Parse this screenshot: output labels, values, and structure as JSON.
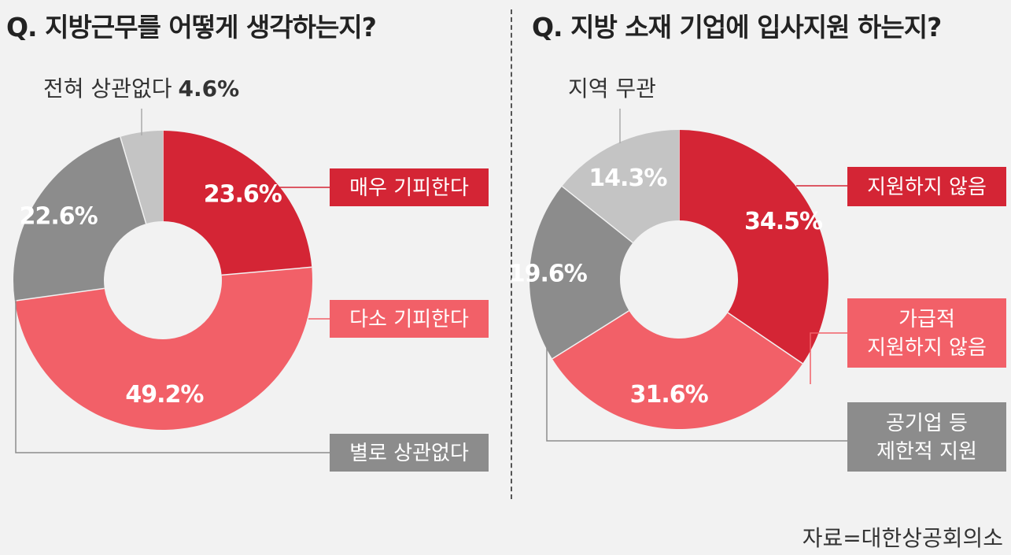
{
  "source": "자료=대한상공회의소",
  "chart_data": [
    {
      "type": "pie",
      "title": "Q. 지방근무를 어떻게 생각하는지?",
      "categories": [
        "매우 기피한다",
        "다소 기피한다",
        "별로 상관없다",
        "전혀 상관없다"
      ],
      "values": [
        23.6,
        49.2,
        22.6,
        4.6
      ],
      "value_labels": [
        "23.6%",
        "49.2%",
        "22.6%",
        "4.6%"
      ],
      "colors": [
        "#d42535",
        "#f26068",
        "#8c8c8c",
        "#c4c4c4"
      ]
    },
    {
      "type": "pie",
      "title": "Q. 지방 소재 기업에 입사지원 하는지?",
      "categories": [
        "지원하지 않음",
        "가급적 지원하지 않음",
        "공기업 등 제한적 지원",
        "지역 무관"
      ],
      "category_lines": [
        [
          "지원하지 않음"
        ],
        [
          "가급적",
          "지원하지 않음"
        ],
        [
          "공기업 등",
          "제한적 지원"
        ],
        [
          "지역 무관"
        ]
      ],
      "values": [
        34.5,
        31.6,
        19.6,
        14.3
      ],
      "value_labels": [
        "34.5%",
        "31.6%",
        "19.6%",
        "14.3%"
      ],
      "colors": [
        "#d42535",
        "#f26068",
        "#8c8c8c",
        "#c4c4c4"
      ]
    }
  ]
}
